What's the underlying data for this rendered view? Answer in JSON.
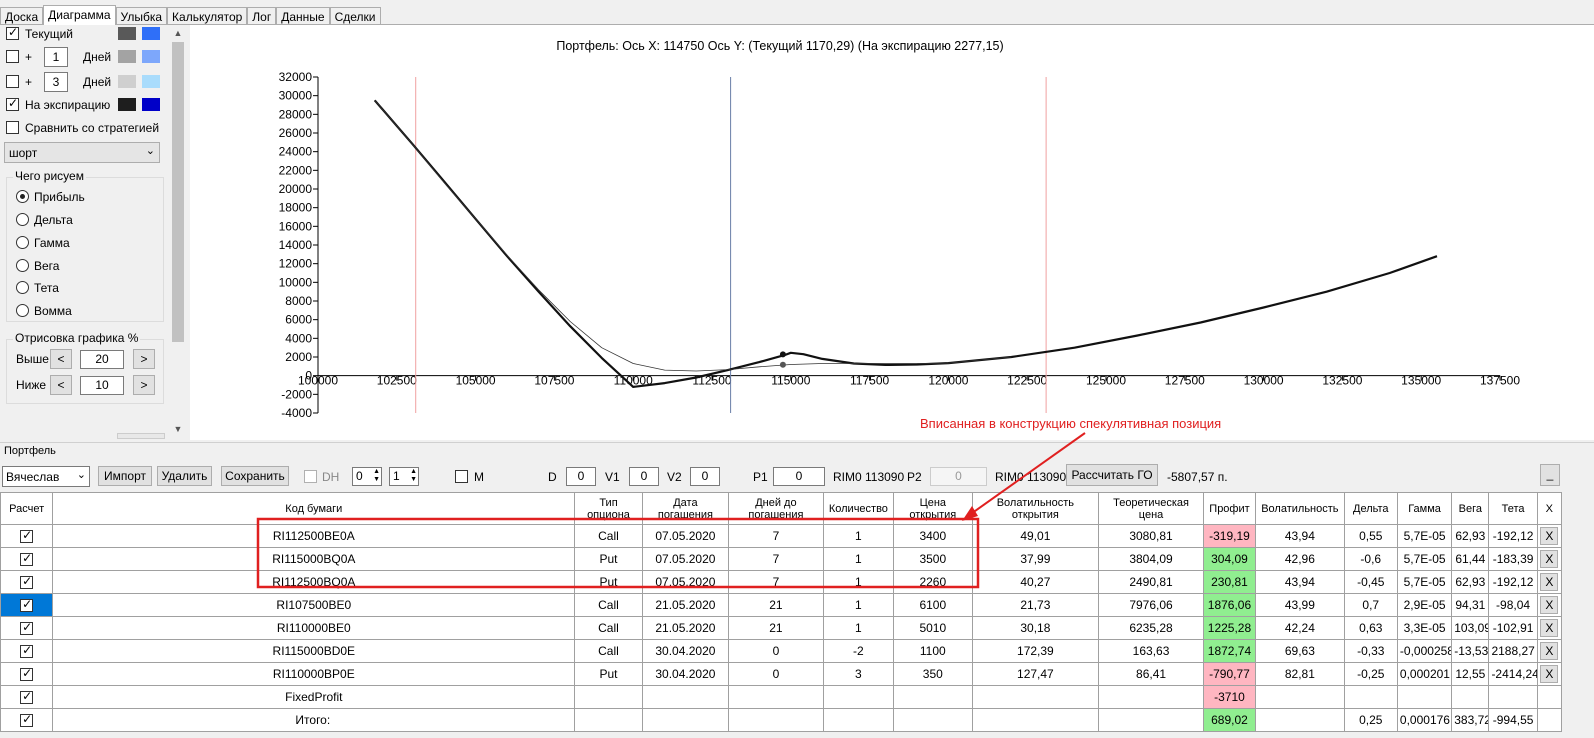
{
  "tabs": [
    "Доска",
    "Диаграмма",
    "Улыбка",
    "Калькулятор",
    "Лог",
    "Данные",
    "Сделки"
  ],
  "left": {
    "current": {
      "label": "Текущий",
      "checked": true,
      "colors": [
        "#595959",
        "#2f6ff8"
      ]
    },
    "plus1": {
      "prefix": "+",
      "value": "1",
      "unit": "Дней",
      "checked": false,
      "colors": [
        "#a3a3a3",
        "#7da7fb"
      ]
    },
    "plus3": {
      "prefix": "+",
      "value": "3",
      "unit": "Дней",
      "checked": false,
      "colors": [
        "#cfcfcf",
        "#a9dcfc"
      ]
    },
    "expiry": {
      "label": "На экспирацию",
      "checked": true,
      "colors": [
        "#1e1e1e",
        "#0000c8"
      ]
    },
    "compare": {
      "label": "Сравнить со стратегией",
      "checked": false
    },
    "strategy_select": "шорт",
    "draw_group": {
      "title": "Чего рисуем",
      "options": [
        "Прибыль",
        "Дельта",
        "Гамма",
        "Вега",
        "Тета",
        "Вомма"
      ],
      "selected": 0
    },
    "render_group": {
      "title": "Отрисовка графика %",
      "above_label": "Выше",
      "above_value": "20",
      "below_label": "Ниже",
      "below_value": "10",
      "dec": "<",
      "inc": ">"
    }
  },
  "chart_data": {
    "type": "line",
    "title": "Портфель:  Ось X: 114750  Ось Y:  (Текущий 1170,29)  (На экспирацию 2277,15)",
    "xlim": [
      100000,
      137500
    ],
    "ylim": [
      -4000,
      32000
    ],
    "x_ticks": [
      100000,
      102500,
      105000,
      107500,
      110000,
      112500,
      115000,
      117500,
      120000,
      122500,
      125000,
      127500,
      130000,
      132500,
      135000,
      137500
    ],
    "y_ticks": [
      -4000,
      -2000,
      0,
      2000,
      4000,
      6000,
      8000,
      10000,
      12000,
      14000,
      16000,
      18000,
      20000,
      22000,
      24000,
      26000,
      28000,
      30000,
      32000
    ],
    "vlines": [
      {
        "x": 103100,
        "color": "#f0a0a0"
      },
      {
        "x": 113090,
        "color": "#6a7fa8"
      },
      {
        "x": 123100,
        "color": "#f0a0a0"
      }
    ],
    "series": [
      {
        "color": "#111111",
        "width": 2.2,
        "x": [
          101800,
          103000,
          104000,
          105000,
          106000,
          107000,
          108000,
          109000,
          110000,
          111000,
          112000,
          113000,
          114000,
          114800,
          115000,
          115400,
          116000,
          117000,
          118000,
          119000,
          120000,
          122000,
          124000,
          126000,
          128000,
          130000,
          132000,
          134000,
          135500
        ],
        "y": [
          29500,
          24800,
          20800,
          16800,
          12800,
          9000,
          5300,
          1900,
          -1200,
          -800,
          -200,
          600,
          1450,
          2200,
          2450,
          2300,
          1800,
          1300,
          1150,
          1200,
          1350,
          2000,
          3000,
          4300,
          5700,
          7300,
          9000,
          11000,
          12800
        ]
      },
      {
        "color": "#333333",
        "width": 0.8,
        "x": [
          101800,
          103000,
          104000,
          105000,
          106000,
          107000,
          108000,
          109000,
          110000,
          111000,
          112000,
          113000,
          114000,
          115000,
          116000,
          117000,
          118000,
          119000,
          120000,
          122000
        ],
        "y": [
          29500,
          24800,
          20700,
          16800,
          12900,
          9200,
          5800,
          3000,
          1300,
          600,
          500,
          650,
          950,
          1200,
          1300,
          1300,
          1300,
          1300,
          1350,
          2000
        ]
      }
    ],
    "points": [
      {
        "x": 114750,
        "y": 2277.15,
        "color": "#111111"
      },
      {
        "x": 114750,
        "y": 1170.29,
        "color": "#555555"
      }
    ]
  },
  "annotation": "Вписанная в конструкцию спекулятивная позиция",
  "portfolio": {
    "title": "Портфель",
    "user": "Вячеслав",
    "import": "Импорт",
    "delete": "Удалить",
    "save": "Сохранить",
    "dh": "DH",
    "dh_val1": "0",
    "dh_val2": "1",
    "m": "M",
    "d_label": "D",
    "d_val": "0",
    "v1_label": "V1",
    "v1_val": "0",
    "v2_label": "V2",
    "v2_val": "0",
    "p1_label": "P1",
    "p1_val": "0",
    "rim1": "RIM0 113090",
    "p2_label": "P2",
    "p2_val": "0",
    "rim2": "RIM0 113090",
    "calc_go": "Рассчитать ГО",
    "go_value": "-5807,57 п.",
    "min_btn": "_"
  },
  "table": {
    "headers": [
      "Расчет",
      "Код бумаги",
      "Тип опциона",
      "Дата погашения",
      "Дней до погашения",
      "Количество",
      "Цена открытия",
      "Волатильность открытия",
      "Теоретическая цена",
      "Профит",
      "Волатильность",
      "Дельта",
      "Гамма",
      "Вега",
      "Тета",
      "X"
    ],
    "rows": [
      [
        "RI112500BE0A",
        "Call",
        "07.05.2020",
        "7",
        "1",
        "3400",
        "49,01",
        "3080,81",
        "-319,19",
        "43,94",
        "0,55",
        "5,7E-05",
        "62,93",
        "-192,12"
      ],
      [
        "RI115000BQ0A",
        "Put",
        "07.05.2020",
        "7",
        "1",
        "3500",
        "37,99",
        "3804,09",
        "304,09",
        "42,96",
        "-0,6",
        "5,7E-05",
        "61,44",
        "-183,39"
      ],
      [
        "RI112500BQ0A",
        "Put",
        "07.05.2020",
        "7",
        "1",
        "2260",
        "40,27",
        "2490,81",
        "230,81",
        "43,94",
        "-0,45",
        "5,7E-05",
        "62,93",
        "-192,12"
      ],
      [
        "RI107500BE0",
        "Call",
        "21.05.2020",
        "21",
        "1",
        "6100",
        "21,73",
        "7976,06",
        "1876,06",
        "43,99",
        "0,7",
        "2,9E-05",
        "94,31",
        "-98,04"
      ],
      [
        "RI110000BE0",
        "Call",
        "21.05.2020",
        "21",
        "1",
        "5010",
        "30,18",
        "6235,28",
        "1225,28",
        "42,24",
        "0,63",
        "3,3E-05",
        "103,09",
        "-102,91"
      ],
      [
        "RI115000BD0E",
        "Call",
        "30.04.2020",
        "0",
        "-2",
        "1100",
        "172,39",
        "163,63",
        "1872,74",
        "69,63",
        "-0,33",
        "-0,000258",
        "-13,53",
        "2188,27"
      ],
      [
        "RI110000BP0E",
        "Put",
        "30.04.2020",
        "0",
        "3",
        "350",
        "127,47",
        "86,41",
        "-790,77",
        "82,81",
        "-0,25",
        "0,000201",
        "12,55",
        "-2414,24"
      ],
      [
        "FixedProfit",
        "",
        "",
        "",
        "",
        "",
        "",
        "",
        "-3710",
        "",
        "",
        "",
        "",
        ""
      ],
      [
        "Итого:",
        "",
        "",
        "",
        "",
        "",
        "",
        "",
        "689,02",
        "",
        "0,25",
        "0,000176",
        "383,72",
        "-994,55"
      ]
    ],
    "x_label": "X"
  }
}
